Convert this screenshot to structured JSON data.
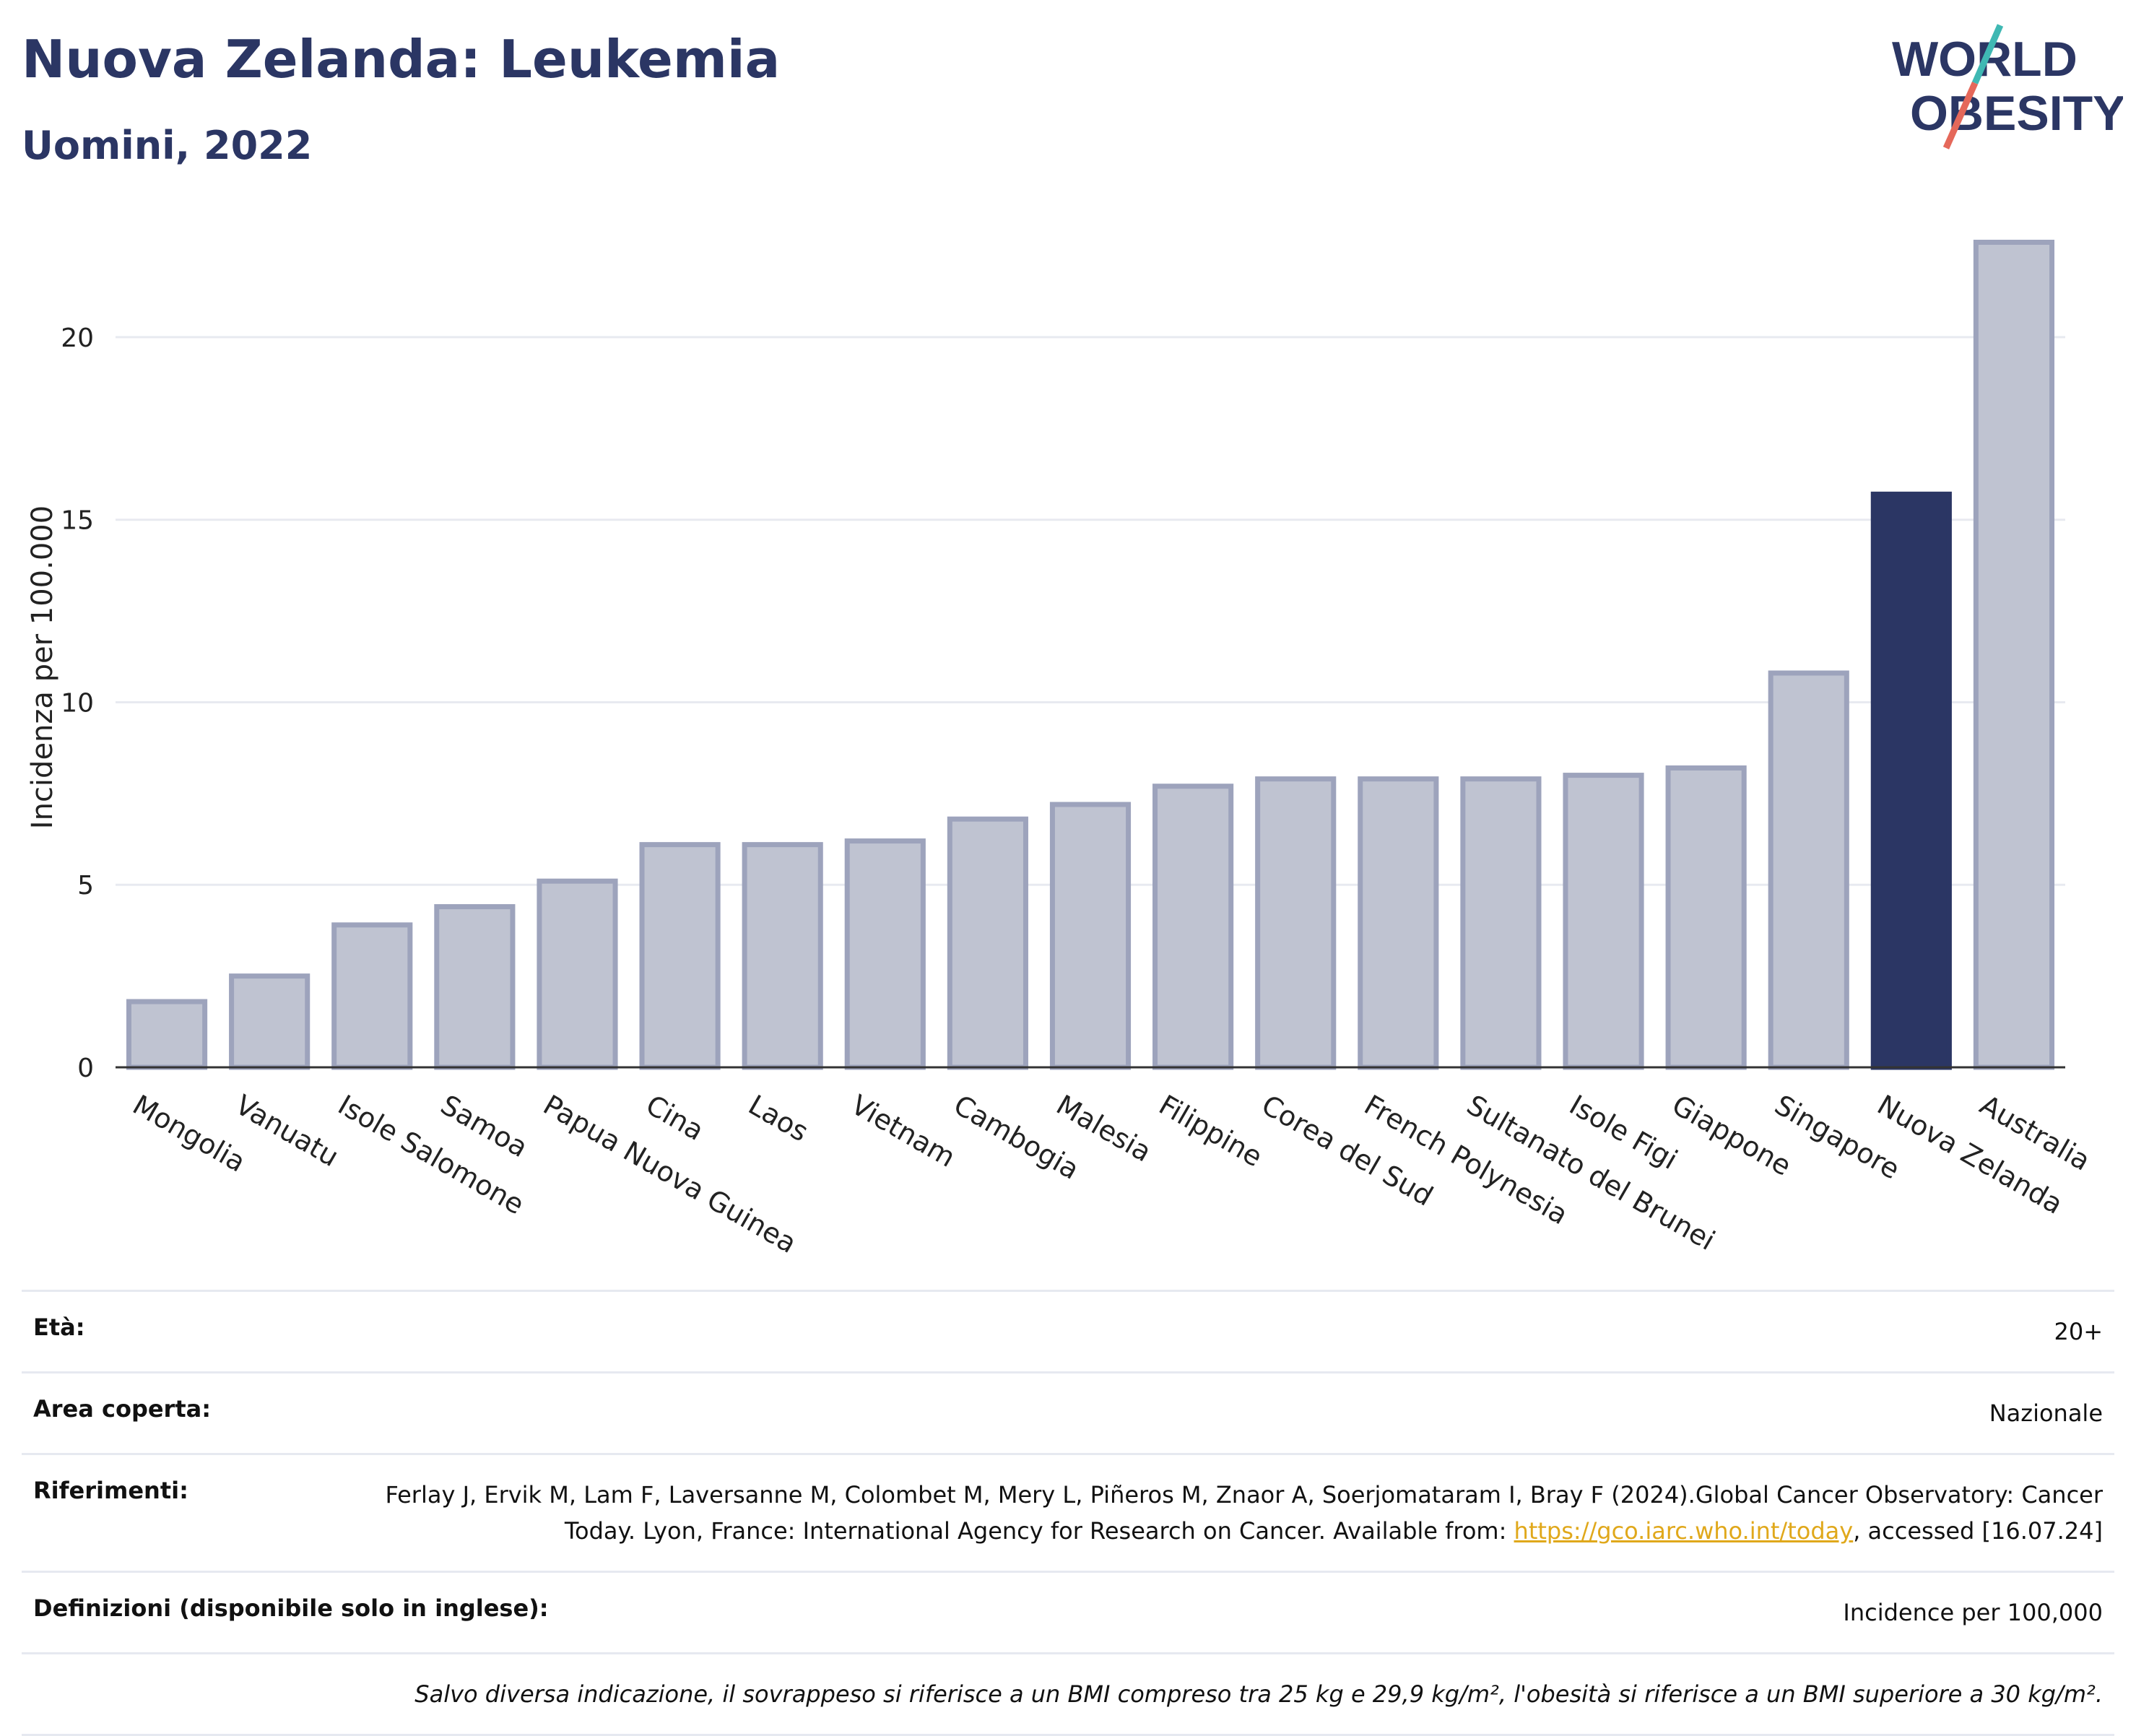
{
  "header": {
    "title": "Nuova Zelanda: Leukemia",
    "subtitle": "Uomini, 2022"
  },
  "logo": {
    "line1": "WORLD",
    "line2": "OBESITY"
  },
  "colors": {
    "highlight": "#2b3664",
    "bar": "#bfc3d1",
    "bar_border": "#9da3bc",
    "title": "#2b3664",
    "link": "#e0a81b"
  },
  "chart_data": {
    "type": "bar",
    "ylabel": "Incidenza per 100.000",
    "ylim": [
      0,
      23.5
    ],
    "yticks": [
      0,
      5,
      10,
      15,
      20
    ],
    "grid": true,
    "highlight": "Nuova Zelanda",
    "categories": [
      "Mongolia",
      "Vanuatu",
      "Isole Salomone",
      "Samoa",
      "Papua Nuova Guinea",
      "Cina",
      "Laos",
      "Vietnam",
      "Cambogia",
      "Malesia",
      "Filippine",
      "Corea del Sud",
      "French Polynesia",
      "Sultanato del Brunei",
      "Isole Figi",
      "Giappone",
      "Singapore",
      "Nuova Zelanda",
      "Australia"
    ],
    "values": [
      1.8,
      2.5,
      3.9,
      4.4,
      5.1,
      6.1,
      6.1,
      6.2,
      6.8,
      7.2,
      7.7,
      7.9,
      7.9,
      7.9,
      8.0,
      8.2,
      10.8,
      15.7,
      22.6
    ]
  },
  "info": {
    "age_label": "Età:",
    "age_value": "20+",
    "area_label": "Area coperta:",
    "area_value": "Nazionale",
    "ref_label": "Riferimenti:",
    "ref_text": "Ferlay J, Ervik M, Lam F, Laversanne M, Colombet M, Mery L, Piñeros M, Znaor A, Soerjomataram I, Bray F (2024).Global Cancer Observatory: Cancer Today. Lyon, France: International Agency for Research on Cancer. Available from: ",
    "ref_link": "https://gco.iarc.who.int/today",
    "ref_tail": ", accessed [16.07.24]",
    "def_label": "Definizioni (disponibile solo in inglese):",
    "def_value": "Incidence per 100,000",
    "note": "Salvo diversa indicazione, il sovrappeso si riferisce a un BMI compreso tra 25 kg e 29,9 kg/m², l'obesità si riferisce a un BMI superiore a 30 kg/m²."
  }
}
